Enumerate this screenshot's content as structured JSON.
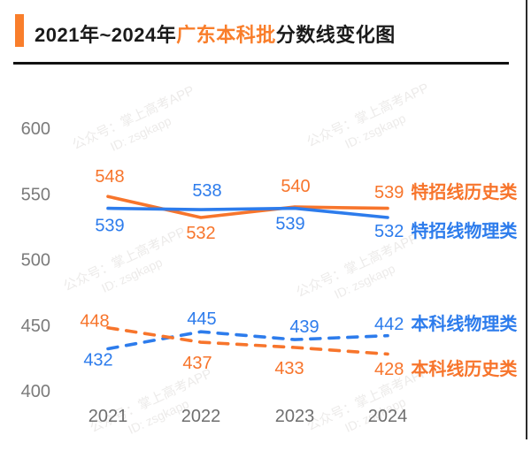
{
  "title": {
    "prefix": "2021年~2024年",
    "highlight": "广东本科批",
    "suffix": "分数线变化图"
  },
  "watermark": {
    "line1": "公众号：掌上高考APP",
    "line2": "ID: zsgkapp"
  },
  "colors": {
    "orange": "#F7752C",
    "blue": "#2D7CEC",
    "axis_text": "#7B7B7B",
    "x_axis_text": "#6F6F6F",
    "title_text": "#1A1A1A",
    "accent": "#F97E2B",
    "divider": "#111111"
  },
  "chart_data": {
    "type": "line",
    "title": "2021年~2024年广东本科批分数线变化图",
    "categories": [
      "2021",
      "2022",
      "2023",
      "2024"
    ],
    "y_ticks": [
      400,
      450,
      500,
      550,
      600
    ],
    "ylim": [
      400,
      600
    ],
    "grid": false,
    "legend_position": "right-end-labels",
    "series": [
      {
        "name": "特招线历史类",
        "color_key": "orange",
        "line_style": "solid",
        "values": [
          548,
          532,
          540,
          539
        ]
      },
      {
        "name": "特招线物理类",
        "color_key": "blue",
        "line_style": "solid",
        "values": [
          539,
          538,
          539,
          532
        ]
      },
      {
        "name": "本科线物理类",
        "color_key": "blue",
        "line_style": "dashed",
        "values": [
          432,
          445,
          439,
          442
        ]
      },
      {
        "name": "本科线历史类",
        "color_key": "orange",
        "line_style": "dashed",
        "values": [
          448,
          437,
          433,
          428
        ]
      }
    ]
  }
}
